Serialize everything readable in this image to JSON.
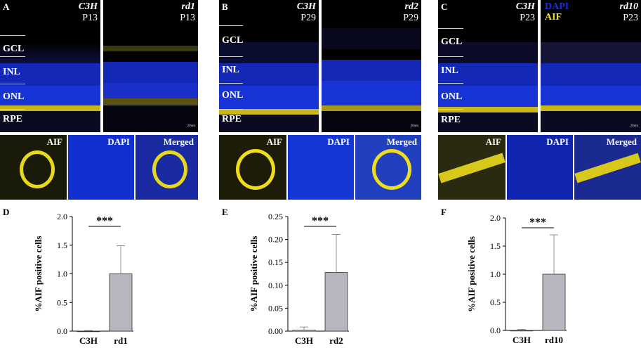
{
  "panels": [
    {
      "letter": "A",
      "left": {
        "strain": "C3H",
        "age": "P13"
      },
      "right": {
        "strain": "rd1",
        "age": "P13"
      },
      "layers": [
        "GCL",
        "INL",
        "ONL",
        "RPE"
      ],
      "scale": "20um",
      "zoom": [
        "AIF",
        "DAPI",
        "Merged"
      ]
    },
    {
      "letter": "B",
      "left": {
        "strain": "C3H",
        "age": "P29"
      },
      "right": {
        "strain": "rd2",
        "age": "P29"
      },
      "layers": [
        "GCL",
        "INL",
        "ONL",
        "RPE"
      ],
      "scale": "20um",
      "zoom": [
        "AIF",
        "DAPI",
        "Merged"
      ]
    },
    {
      "letter": "C",
      "left": {
        "strain": "C3H",
        "age": "P23"
      },
      "right": {
        "strain": "rd10",
        "age": "P23",
        "legend": [
          "DAPI",
          "AIF"
        ]
      },
      "layers": [
        "GCL",
        "INL",
        "ONL",
        "RPE"
      ],
      "scale": "20um",
      "zoom": [
        "AIF",
        "DAPI",
        "Merged"
      ]
    }
  ],
  "colors": {
    "dapi": "#1b2fd6",
    "aif": "#f2e21a",
    "bar_treated": "#b6b6be",
    "bar_edge": "#333333"
  },
  "chart_data": [
    {
      "letter": "D",
      "type": "bar",
      "categories": [
        "C3H",
        "rd1"
      ],
      "values": [
        0.0,
        1.0
      ],
      "errors": [
        0.01,
        0.49
      ],
      "ylabel": "%AIF positive cells",
      "ylim": [
        0,
        2.0
      ],
      "ticks": [
        "0.0",
        "0.5",
        "1.0",
        "1.5",
        "2.0"
      ],
      "significance": "***"
    },
    {
      "letter": "E",
      "type": "bar",
      "categories": [
        "C3H",
        "rd2"
      ],
      "values": [
        0.002,
        0.128
      ],
      "errors": [
        0.007,
        0.083
      ],
      "ylabel": "%AIF positive cells",
      "ylim": [
        0,
        0.25
      ],
      "ticks": [
        "0.00",
        "0.05",
        "0.10",
        "0.15",
        "0.20",
        "0.25"
      ],
      "significance": "***"
    },
    {
      "letter": "F",
      "type": "bar",
      "categories": [
        "C3H",
        "rd10"
      ],
      "values": [
        0.0,
        1.0
      ],
      "errors": [
        0.02,
        0.7
      ],
      "ylabel": "%AIF positive cells",
      "ylim": [
        0,
        2.0
      ],
      "ticks": [
        "0.0",
        "0.5",
        "1.0",
        "1.5",
        "2.0"
      ],
      "significance": "***"
    }
  ]
}
